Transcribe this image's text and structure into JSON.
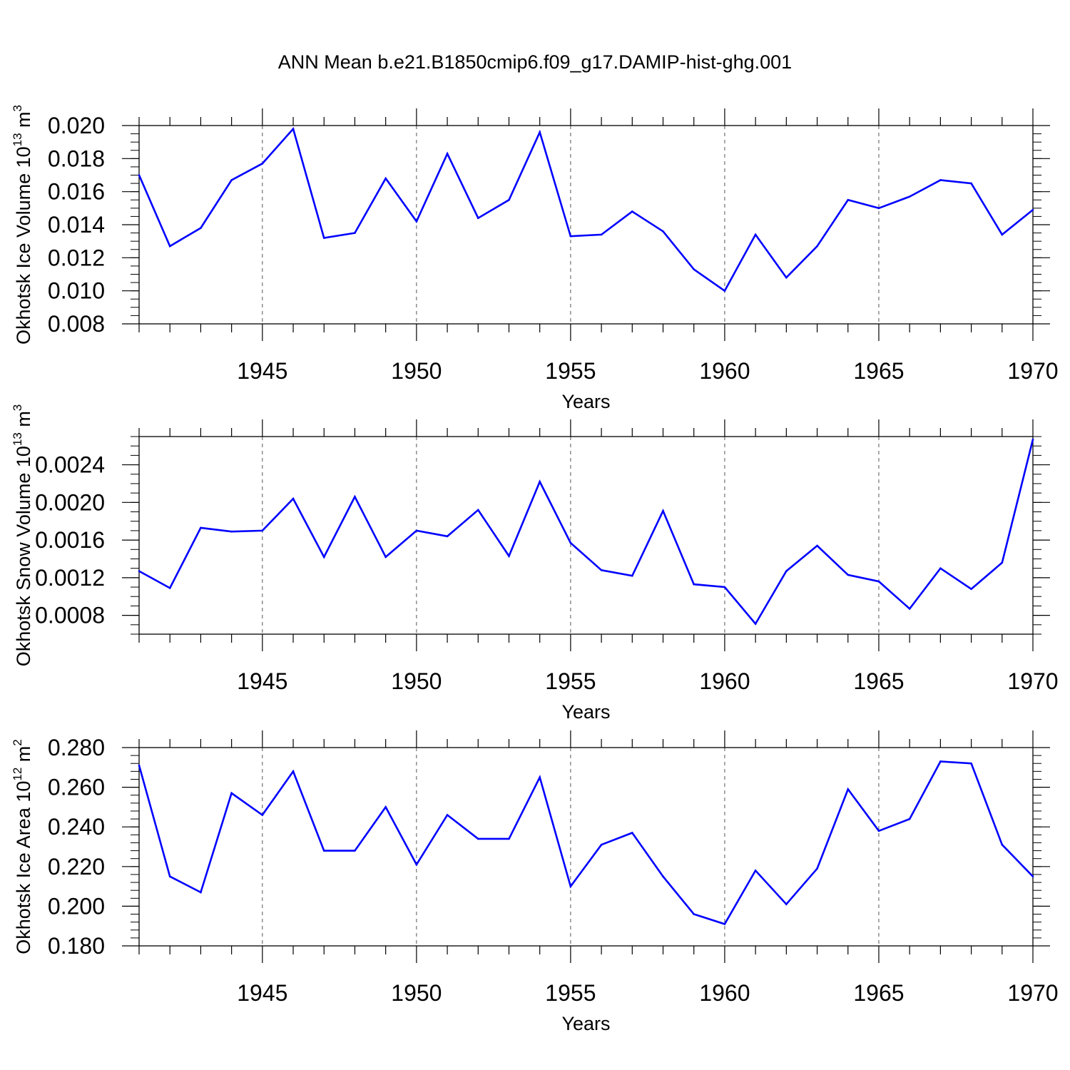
{
  "title": "ANN Mean b.e21.B1850cmip6.f09_g17.DAMIP-hist-ghg.001",
  "line_color": "#0000ff",
  "chart_data": [
    {
      "type": "line",
      "id": "ice-volume",
      "ylabel_prefix": "Okhotsk Ice Volume 10",
      "ylabel_exp": "13",
      "ylabel_unit": " m",
      "ylabel_unit_exp": "3",
      "xlabel": "Years",
      "xlim": [
        1941,
        1970
      ],
      "ylim": [
        0.008,
        0.02
      ],
      "yticks": [
        0.008,
        0.01,
        0.012,
        0.014,
        0.016,
        0.018,
        0.02
      ],
      "ytick_labels": [
        "0.008",
        "0.010",
        "0.012",
        "0.014",
        "0.016",
        "0.018",
        "0.020"
      ],
      "yminor_step": 0.0005,
      "xticks": [
        1945,
        1950,
        1955,
        1960,
        1965,
        1970
      ],
      "xtick_labels": [
        "1945",
        "1950",
        "1955",
        "1960",
        "1965",
        "1970"
      ],
      "x": [
        1941,
        1942,
        1943,
        1944,
        1945,
        1946,
        1947,
        1948,
        1949,
        1950,
        1951,
        1952,
        1953,
        1954,
        1955,
        1956,
        1957,
        1958,
        1959,
        1960,
        1961,
        1962,
        1963,
        1964,
        1965,
        1966,
        1967,
        1968,
        1969,
        1970
      ],
      "values": [
        0.017,
        0.0127,
        0.0138,
        0.0167,
        0.0177,
        0.0198,
        0.0132,
        0.0135,
        0.0168,
        0.0142,
        0.0183,
        0.0144,
        0.0155,
        0.0196,
        0.0133,
        0.0134,
        0.0148,
        0.0136,
        0.0113,
        0.01,
        0.0134,
        0.0108,
        0.0127,
        0.0155,
        0.015,
        0.0157,
        0.0167,
        0.0165,
        0.0134,
        0.0149
      ]
    },
    {
      "type": "line",
      "id": "snow-volume",
      "ylabel_prefix": "Okhotsk Snow Volume 10",
      "ylabel_exp": "13",
      "ylabel_unit": " m",
      "ylabel_unit_exp": "3",
      "xlabel": "Years",
      "xlim": [
        1941,
        1970
      ],
      "ylim": [
        0.0006,
        0.0027
      ],
      "yticks": [
        0.0008,
        0.0012,
        0.0016,
        0.002,
        0.0024
      ],
      "ytick_labels": [
        "0.0008",
        "0.0012",
        "0.0016",
        "0.0020",
        "0.0024"
      ],
      "yminor_step": 0.0001,
      "xticks": [
        1945,
        1950,
        1955,
        1960,
        1965,
        1970
      ],
      "xtick_labels": [
        "1945",
        "1950",
        "1955",
        "1960",
        "1965",
        "1970"
      ],
      "x": [
        1941,
        1942,
        1943,
        1944,
        1945,
        1946,
        1947,
        1948,
        1949,
        1950,
        1951,
        1952,
        1953,
        1954,
        1955,
        1956,
        1957,
        1958,
        1959,
        1960,
        1961,
        1962,
        1963,
        1964,
        1965,
        1966,
        1967,
        1968,
        1969,
        1970
      ],
      "values": [
        0.00127,
        0.00109,
        0.00173,
        0.00169,
        0.0017,
        0.00204,
        0.00142,
        0.00206,
        0.00142,
        0.0017,
        0.00164,
        0.00192,
        0.00143,
        0.00222,
        0.00157,
        0.00128,
        0.00122,
        0.00191,
        0.00113,
        0.0011,
        0.00071,
        0.00127,
        0.00154,
        0.00123,
        0.00116,
        0.00087,
        0.0013,
        0.00108,
        0.00136,
        0.00267
      ]
    },
    {
      "type": "line",
      "id": "ice-area",
      "ylabel_prefix": "Okhotsk Ice Area 10",
      "ylabel_exp": "12",
      "ylabel_unit": " m",
      "ylabel_unit_exp": "2",
      "xlabel": "Years",
      "xlim": [
        1941,
        1970
      ],
      "ylim": [
        0.18,
        0.28
      ],
      "yticks": [
        0.18,
        0.2,
        0.22,
        0.24,
        0.26,
        0.28
      ],
      "ytick_labels": [
        "0.180",
        "0.200",
        "0.220",
        "0.240",
        "0.260",
        "0.280"
      ],
      "yminor_step": 0.004,
      "xticks": [
        1945,
        1950,
        1955,
        1960,
        1965,
        1970
      ],
      "xtick_labels": [
        "1945",
        "1950",
        "1955",
        "1960",
        "1965",
        "1970"
      ],
      "x": [
        1941,
        1942,
        1943,
        1944,
        1945,
        1946,
        1947,
        1948,
        1949,
        1950,
        1951,
        1952,
        1953,
        1954,
        1955,
        1956,
        1957,
        1958,
        1959,
        1960,
        1961,
        1962,
        1963,
        1964,
        1965,
        1966,
        1967,
        1968,
        1969,
        1970
      ],
      "values": [
        0.271,
        0.215,
        0.207,
        0.257,
        0.246,
        0.268,
        0.228,
        0.228,
        0.25,
        0.221,
        0.246,
        0.234,
        0.234,
        0.265,
        0.21,
        0.231,
        0.237,
        0.215,
        0.196,
        0.191,
        0.218,
        0.201,
        0.219,
        0.259,
        0.238,
        0.244,
        0.273,
        0.272,
        0.231,
        0.215
      ]
    }
  ]
}
